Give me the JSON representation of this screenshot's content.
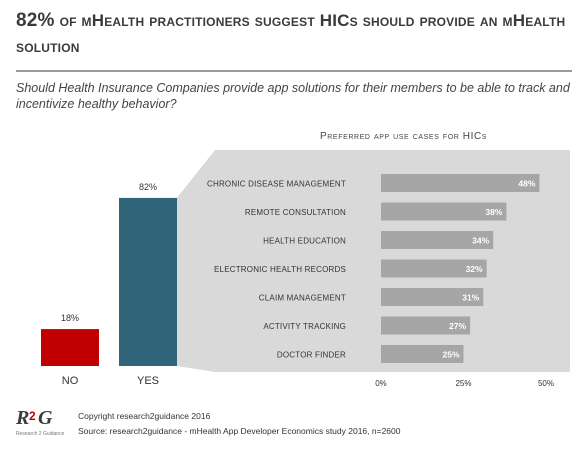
{
  "title": {
    "pct": "82%",
    "rest": " of mHealth practitioners suggest HICs should provide an mHealth solution"
  },
  "question": "Should Health Insurance Companies provide app solutions for their members to be able to track and incentivize healthy behavior?",
  "panel_title": "Preferred app use cases for HICs",
  "colors": {
    "no": "#c00000",
    "yes": "#31657a",
    "bar": "#a6a6a6",
    "band": "#d9d9d9"
  },
  "chart_data": [
    {
      "type": "bar",
      "categories": [
        "NO",
        "YES"
      ],
      "values": [
        18,
        82
      ],
      "value_labels": [
        "18%",
        "82%"
      ]
    },
    {
      "type": "bar",
      "orientation": "horizontal",
      "categories": [
        "Chronic disease management",
        "Remote consultation",
        "Health education",
        "Electronic health records",
        "Claim management",
        "Activity tracking",
        "Doctor finder"
      ],
      "values": [
        48,
        38,
        34,
        32,
        31,
        27,
        25
      ],
      "value_labels": [
        "48%",
        "38%",
        "34%",
        "32%",
        "31%",
        "27%",
        "25%"
      ],
      "xlim": [
        0,
        50
      ],
      "xticks": [
        "0%",
        "25%",
        "50%"
      ]
    }
  ],
  "footer": {
    "logo_text": "R2G",
    "logo_sub": "Research 2 Guidance",
    "copyright": "Copyright research2guidance 2016",
    "source": "Source: research2guidance - mHealth App Developer Economics study 2016, n=2600"
  }
}
